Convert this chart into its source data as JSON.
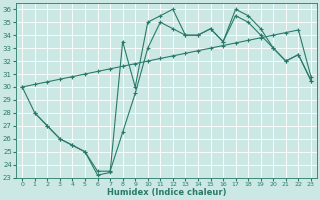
{
  "xlabel": "Humidex (Indice chaleur)",
  "bg_color": "#cce8e5",
  "grid_color": "#b8d8d5",
  "line_color": "#2a7a6a",
  "xlim": [
    -0.5,
    23.5
  ],
  "ylim": [
    23,
    36.5
  ],
  "xticks": [
    0,
    1,
    2,
    3,
    4,
    5,
    6,
    7,
    8,
    9,
    10,
    11,
    12,
    13,
    14,
    15,
    16,
    17,
    18,
    19,
    20,
    21,
    22,
    23
  ],
  "yticks": [
    23,
    24,
    25,
    26,
    27,
    28,
    29,
    30,
    31,
    32,
    33,
    34,
    35,
    36
  ],
  "series1_x": [
    0,
    1,
    2,
    3,
    4,
    5,
    6,
    7,
    8,
    9,
    10,
    11,
    12,
    13,
    14,
    15,
    16,
    17,
    18,
    19,
    20,
    21,
    22,
    23
  ],
  "series1_y": [
    30,
    28,
    27,
    26,
    25.5,
    25,
    23.2,
    23.4,
    33.5,
    30,
    35,
    35.5,
    36,
    34,
    34,
    34.5,
    33.5,
    36,
    35.5,
    34.5,
    33,
    32,
    32.5,
    30.5
  ],
  "series2_x": [
    0,
    1,
    2,
    3,
    4,
    5,
    6,
    7,
    8,
    9,
    10,
    11,
    12,
    13,
    14,
    15,
    16,
    17,
    18,
    19,
    20,
    21,
    22,
    23
  ],
  "series2_y": [
    30,
    30.2,
    30.4,
    30.6,
    30.8,
    31.0,
    31.2,
    31.4,
    31.6,
    31.8,
    32.0,
    32.2,
    32.4,
    32.6,
    32.8,
    33.0,
    33.2,
    33.4,
    33.6,
    33.8,
    34.0,
    34.2,
    34.4,
    30.8
  ],
  "series3_x": [
    1,
    2,
    3,
    4,
    5,
    6,
    7,
    8,
    9,
    10,
    11,
    12,
    13,
    14,
    15,
    16,
    17,
    18,
    19,
    20,
    21,
    22,
    23
  ],
  "series3_y": [
    28,
    27,
    26,
    25.5,
    25,
    23.5,
    23.5,
    26.5,
    29.5,
    33,
    35,
    34.5,
    34,
    34,
    34.5,
    33.5,
    35.5,
    35,
    34,
    33,
    32,
    32.5,
    30.5
  ]
}
